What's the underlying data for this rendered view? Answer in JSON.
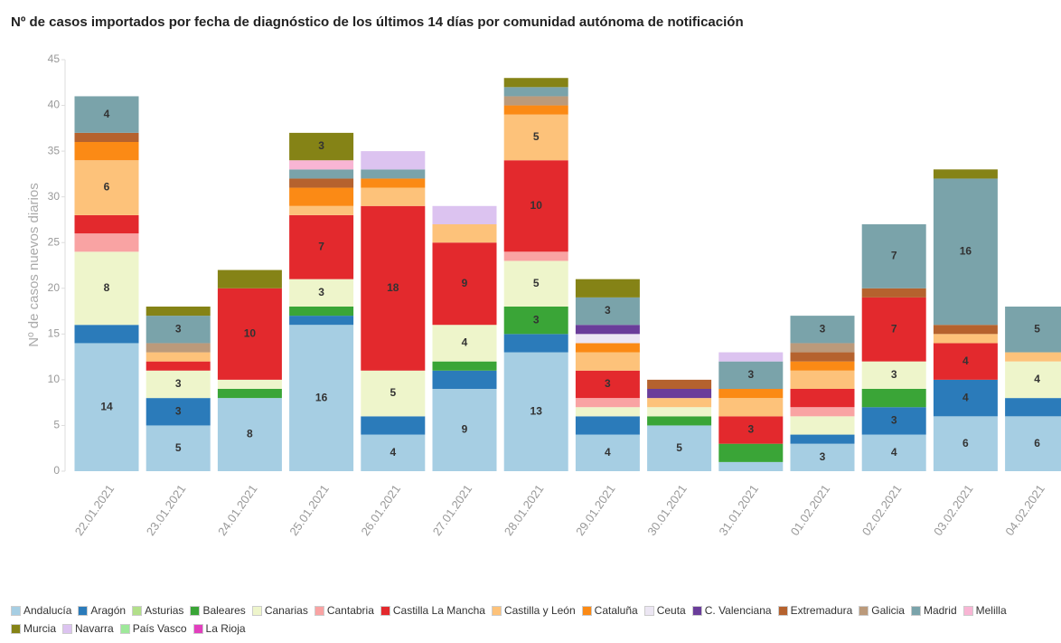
{
  "chart_data": {
    "type": "stacked_bar",
    "title": "Nº de casos importados por fecha de diagnóstico de los últimos 14 días por comunidad autónoma de notificación",
    "y_label": "Nº de casos nuevos diarios",
    "categories": [
      "22.01.2021",
      "23.01.2021",
      "24.01.2021",
      "25.01.2021",
      "26.01.2021",
      "27.01.2021",
      "28.01.2021",
      "29.01.2021",
      "30.01.2021",
      "31.01.2021",
      "01.02.2021",
      "02.02.2021",
      "03.02.2021",
      "04.02.2021"
    ],
    "ylim": [
      0,
      45
    ],
    "yticks": [
      0,
      5,
      10,
      15,
      20,
      25,
      30,
      35,
      40,
      45
    ],
    "series": [
      {
        "name": "Andalucía",
        "color": "#a6cee3",
        "values": [
          14,
          5,
          8,
          16,
          4,
          9,
          13,
          4,
          5,
          1,
          3,
          4,
          6,
          6
        ]
      },
      {
        "name": "Aragón",
        "color": "#2b7bba",
        "values": [
          2,
          3,
          0,
          1,
          2,
          2,
          2,
          2,
          0,
          0,
          1,
          3,
          4,
          2
        ]
      },
      {
        "name": "Asturias",
        "color": "#b2df8a",
        "values": [
          0,
          0,
          0,
          0,
          0,
          0,
          0,
          0,
          0,
          0,
          0,
          0,
          0,
          0
        ]
      },
      {
        "name": "Baleares",
        "color": "#3aa537",
        "values": [
          0,
          0,
          1,
          1,
          0,
          1,
          3,
          0,
          1,
          2,
          0,
          2,
          0,
          0
        ]
      },
      {
        "name": "Canarias",
        "color": "#eef5cb",
        "values": [
          8,
          3,
          1,
          3,
          5,
          4,
          5,
          1,
          1,
          0,
          2,
          3,
          0,
          4
        ]
      },
      {
        "name": "Cantabria",
        "color": "#f9a3a3",
        "values": [
          2,
          0,
          0,
          0,
          0,
          0,
          1,
          1,
          0,
          0,
          1,
          0,
          0,
          0
        ]
      },
      {
        "name": "Castilla La Mancha",
        "color": "#e3292d",
        "values": [
          2,
          1,
          10,
          7,
          18,
          9,
          10,
          3,
          0,
          3,
          2,
          7,
          4,
          0
        ]
      },
      {
        "name": "Castilla y León",
        "color": "#fdc27a",
        "values": [
          6,
          1,
          0,
          1,
          2,
          2,
          5,
          2,
          1,
          2,
          2,
          0,
          1,
          1
        ]
      },
      {
        "name": "Cataluña",
        "color": "#fb8a15",
        "values": [
          2,
          0,
          0,
          2,
          1,
          0,
          1,
          1,
          0,
          1,
          1,
          0,
          0,
          0
        ]
      },
      {
        "name": "Ceuta",
        "color": "#ece6f3",
        "values": [
          0,
          0,
          0,
          0,
          0,
          0,
          0,
          1,
          0,
          0,
          0,
          0,
          0,
          0
        ]
      },
      {
        "name": "C. Valenciana",
        "color": "#6a3d9a",
        "values": [
          0,
          0,
          0,
          0,
          0,
          0,
          0,
          1,
          1,
          0,
          0,
          0,
          0,
          0
        ]
      },
      {
        "name": "Extremadura",
        "color": "#b5622e",
        "values": [
          1,
          0,
          0,
          1,
          0,
          0,
          0,
          0,
          1,
          0,
          1,
          1,
          1,
          0
        ]
      },
      {
        "name": "Galicia",
        "color": "#bb9a7b",
        "values": [
          0,
          1,
          0,
          0,
          0,
          0,
          1,
          0,
          0,
          0,
          1,
          0,
          0,
          0
        ]
      },
      {
        "name": "Madrid",
        "color": "#7aa3aa",
        "values": [
          4,
          3,
          0,
          1,
          1,
          0,
          1,
          3,
          0,
          3,
          3,
          7,
          16,
          5
        ]
      },
      {
        "name": "Melilla",
        "color": "#f8b5d4",
        "values": [
          0,
          0,
          0,
          1,
          0,
          0,
          0,
          0,
          0,
          0,
          0,
          0,
          0,
          0
        ]
      },
      {
        "name": "Murcia",
        "color": "#858316",
        "values": [
          0,
          1,
          2,
          3,
          0,
          0,
          1,
          2,
          0,
          0,
          0,
          0,
          1,
          0
        ]
      },
      {
        "name": "Navarra",
        "color": "#dcc3f0",
        "values": [
          0,
          0,
          0,
          0,
          2,
          2,
          0,
          0,
          0,
          1,
          0,
          0,
          0,
          0
        ]
      },
      {
        "name": "País Vasco",
        "color": "#9ee89a",
        "values": [
          0,
          0,
          0,
          0,
          0,
          0,
          0,
          0,
          0,
          0,
          0,
          0,
          0,
          0
        ]
      },
      {
        "name": "La Rioja",
        "color": "#e23fbe",
        "values": [
          0,
          0,
          0,
          0,
          0,
          0,
          0,
          0,
          0,
          0,
          0,
          0,
          0,
          0
        ]
      }
    ]
  }
}
